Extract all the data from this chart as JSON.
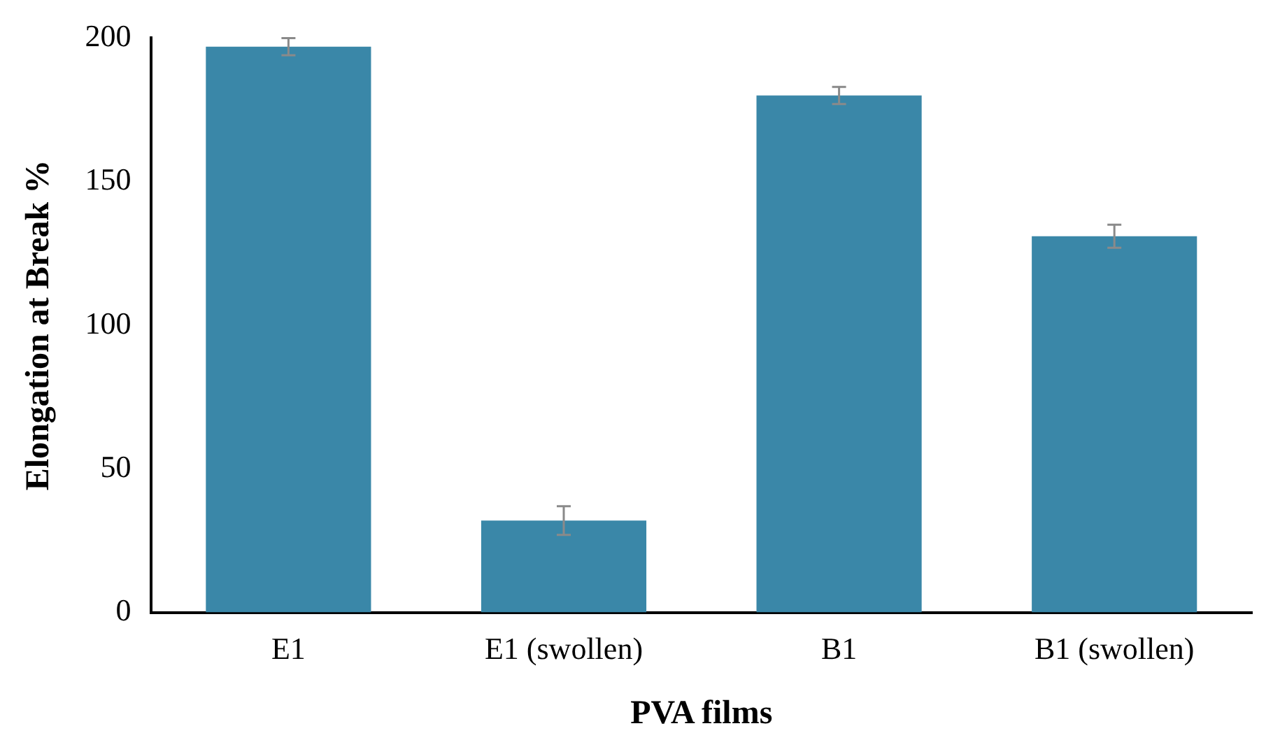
{
  "chart_data": {
    "type": "bar",
    "xlabel": "PVA films",
    "ylabel": "Elongation at Break %",
    "categories": [
      "E1",
      "E1 (swollen)",
      "B1",
      "B1 (swollen)"
    ],
    "values": [
      197,
      32,
      180,
      131
    ],
    "errors": [
      3,
      5,
      3,
      4
    ],
    "color": "#3a87a8",
    "ylim": [
      0,
      200
    ],
    "yticks": [
      0,
      50,
      100,
      150,
      200
    ],
    "grid": false
  }
}
